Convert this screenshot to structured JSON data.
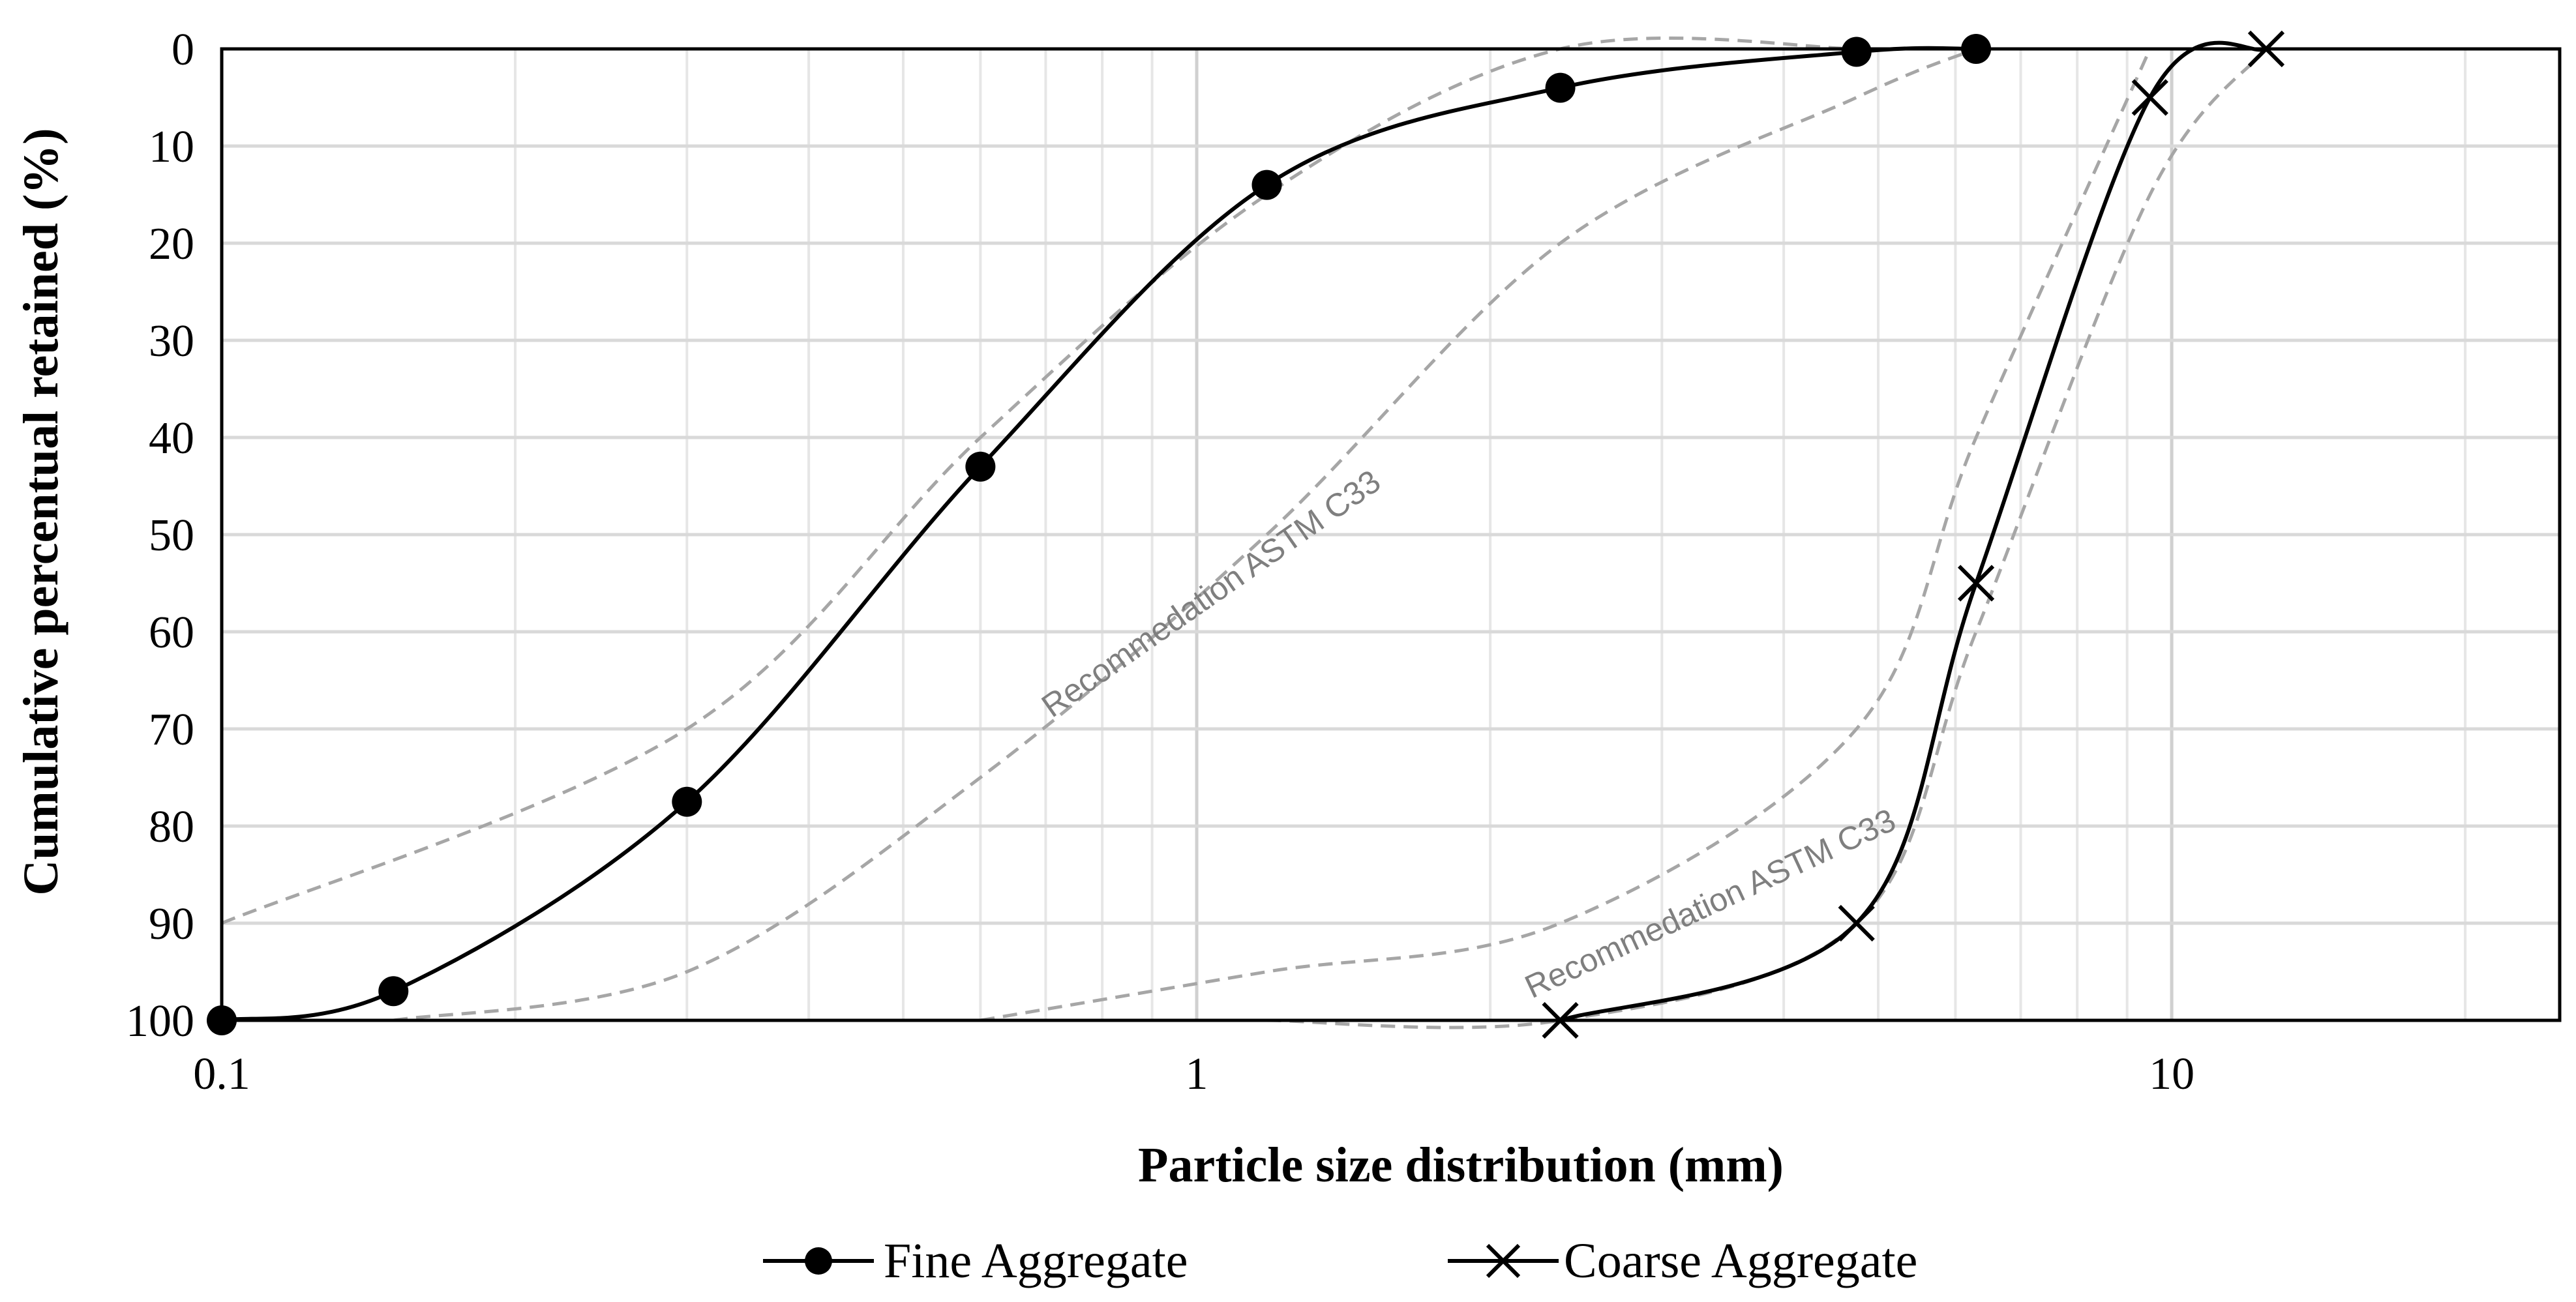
{
  "chart_data": {
    "type": "line",
    "title": "",
    "xlabel": "Particle size distribution (mm)",
    "ylabel": "Cumulative percentual retained (%)",
    "x_scale": "log",
    "xlim": [
      0.1,
      25
    ],
    "ylim": [
      0,
      100
    ],
    "y_inverted": true,
    "x_ticks": [
      {
        "value": 0.1,
        "label": "0.1"
      },
      {
        "value": 1,
        "label": "1"
      },
      {
        "value": 10,
        "label": "10"
      }
    ],
    "y_ticks": [
      {
        "value": 0,
        "label": "0"
      },
      {
        "value": 10,
        "label": "10"
      },
      {
        "value": 20,
        "label": "20"
      },
      {
        "value": 30,
        "label": "30"
      },
      {
        "value": 40,
        "label": "40"
      },
      {
        "value": 50,
        "label": "50"
      },
      {
        "value": 60,
        "label": "60"
      },
      {
        "value": 70,
        "label": "70"
      },
      {
        "value": 80,
        "label": "80"
      },
      {
        "value": 90,
        "label": "90"
      },
      {
        "value": 100,
        "label": "100"
      }
    ],
    "grid": true,
    "legend_position": "bottom-center",
    "series": [
      {
        "name": "Fine Aggregate",
        "marker": "circle",
        "color": "#000000",
        "x": [
          0.1,
          0.15,
          0.3,
          0.6,
          1.18,
          2.36,
          4.75,
          6.3
        ],
        "y": [
          100,
          97,
          77.5,
          43,
          14,
          4,
          0.3,
          0
        ]
      },
      {
        "name": "Coarse Aggregate",
        "marker": "x",
        "color": "#000000",
        "x": [
          2.36,
          4.75,
          6.3,
          9.5,
          12.5
        ],
        "y": [
          100,
          90,
          55,
          5,
          0
        ]
      }
    ],
    "reference_bounds": [
      {
        "group": "fine",
        "style": "dashed",
        "color": "#a6a6a6",
        "x": [
          0.1,
          0.3,
          0.6,
          1.18,
          2.36,
          4.75
        ],
        "y": [
          90,
          70,
          40,
          15,
          0,
          0
        ]
      },
      {
        "group": "fine",
        "style": "dashed",
        "color": "#a6a6a6",
        "x": [
          0.15,
          0.3,
          0.6,
          1.18,
          2.36,
          4.75,
          6.3
        ],
        "y": [
          100,
          95,
          75,
          50,
          20,
          5,
          0
        ]
      },
      {
        "group": "coarse",
        "style": "dashed",
        "color": "#a6a6a6",
        "x": [
          0.6,
          1.18,
          2.36,
          4.75,
          6.3,
          9.5
        ],
        "y": [
          100,
          95,
          90,
          70,
          40,
          0
        ]
      },
      {
        "group": "coarse",
        "style": "dashed",
        "color": "#a6a6a6",
        "x": [
          1.18,
          2.36,
          4.75,
          6.3,
          9.5,
          12.5
        ],
        "y": [
          100,
          100,
          90,
          60,
          15,
          0
        ]
      }
    ],
    "annotations": [
      {
        "text": "Recommedation ASTM C33",
        "x": 1.05,
        "y": 57,
        "angle": -35
      },
      {
        "text": "Recommedation ASTM C33",
        "x": 3.4,
        "y": 89,
        "angle": -25
      }
    ]
  }
}
